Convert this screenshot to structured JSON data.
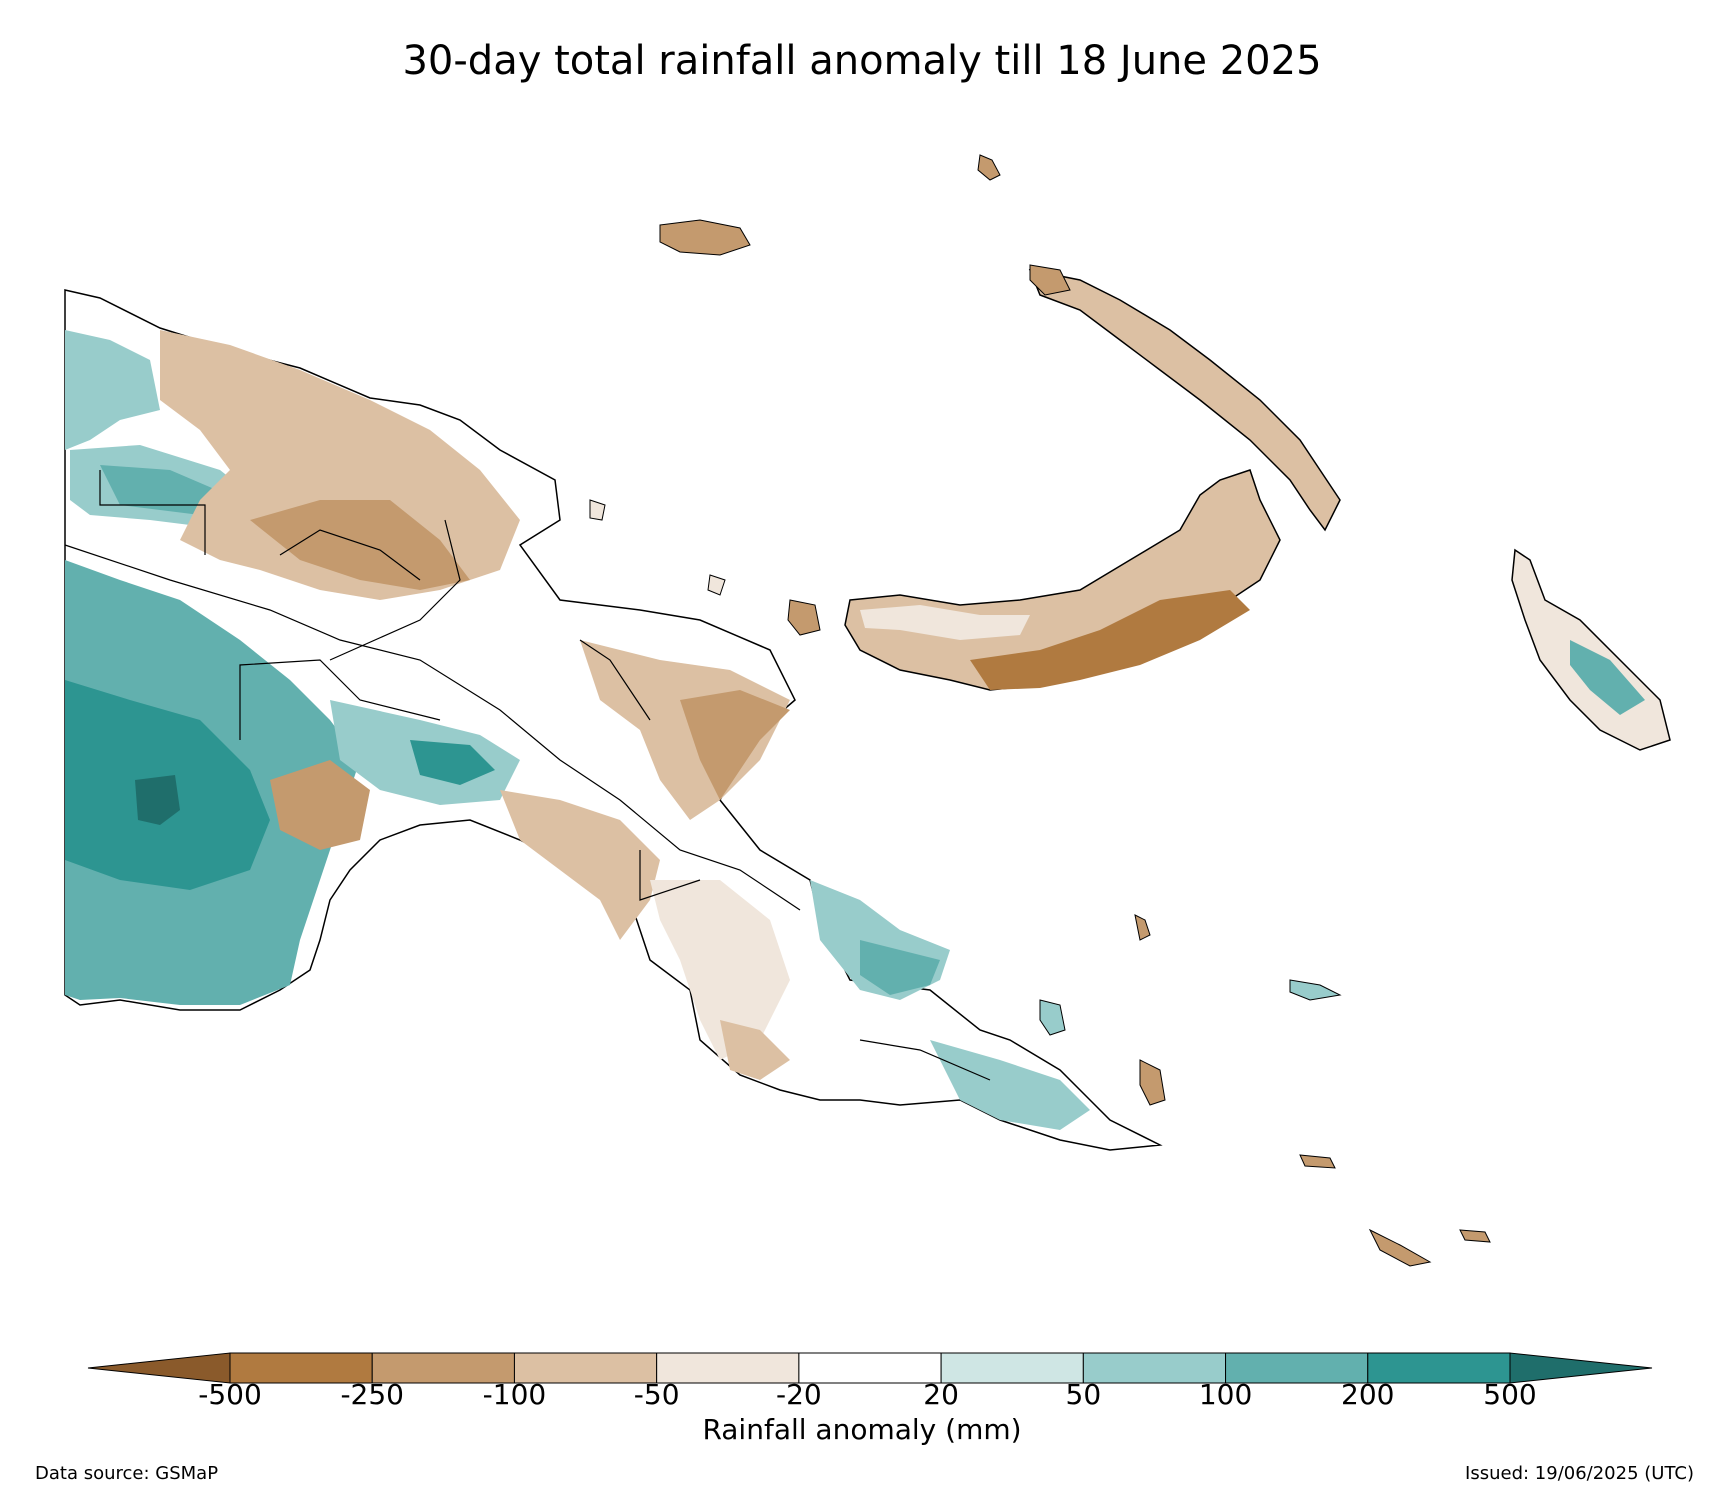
{
  "title": "30-day total rainfall anomaly till 18 June 2025",
  "map": {
    "region": "Papua New Guinea",
    "colors": {
      "dry_extreme": "#8a5a2b",
      "d500": "#b07a40",
      "d250": "#c49a6e",
      "d100": "#dcc0a3",
      "d50": "#f0e6dc",
      "neutral": "#ffffff",
      "w20": "#cfe6e4",
      "w50": "#98cccb",
      "w100": "#62b0ae",
      "w200": "#2d9591",
      "wet_extreme": "#1f6e6b"
    }
  },
  "colorbar": {
    "label": "Rainfall anomaly (mm)",
    "ticks": [
      "-500",
      "-250",
      "-100",
      "-50",
      "-20",
      "20",
      "50",
      "100",
      "200",
      "500"
    ],
    "colors": [
      "#b07a40",
      "#c49a6e",
      "#dcc0a3",
      "#f0e6dc",
      "#ffffff",
      "#cfe6e4",
      "#98cccb",
      "#62b0ae",
      "#2d9591"
    ],
    "extend_low_color": "#8a5a2b",
    "extend_high_color": "#1f6e6b"
  },
  "footer": {
    "source": "Data source: GSMaP",
    "issued": "Issued: 19/06/2025 (UTC)"
  }
}
